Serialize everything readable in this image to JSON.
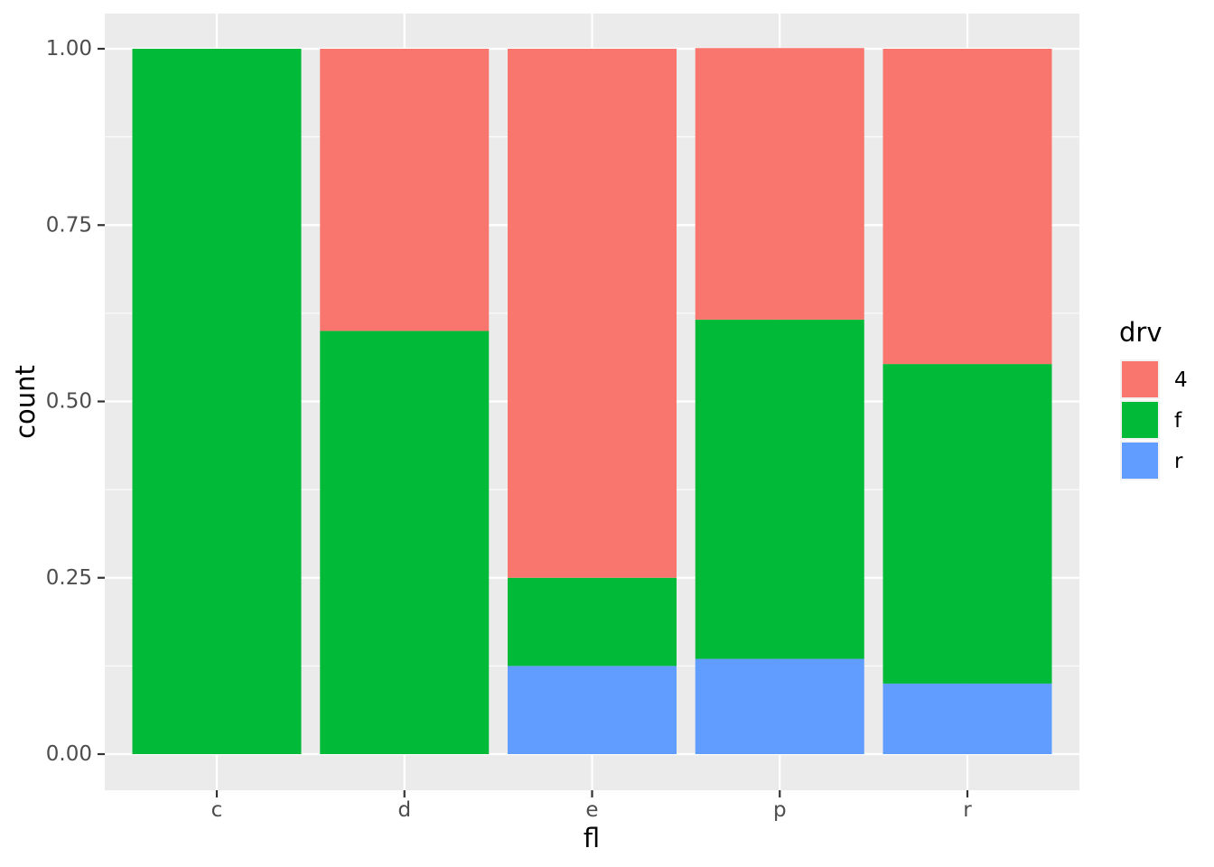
{
  "chart_data": {
    "type": "bar",
    "stacked": true,
    "position": "fill",
    "categories": [
      "c",
      "d",
      "e",
      "p",
      "r"
    ],
    "series": [
      {
        "name": "4",
        "color": "#F8766D",
        "values": [
          0.0,
          0.4,
          0.75,
          0.385,
          0.447
        ]
      },
      {
        "name": "f",
        "color": "#00BA38",
        "values": [
          1.0,
          0.6,
          0.125,
          0.481,
          0.453
        ]
      },
      {
        "name": "r",
        "color": "#619CFF",
        "values": [
          0.0,
          0.0,
          0.125,
          0.135,
          0.1
        ]
      }
    ],
    "xlabel": "fl",
    "ylabel": "count",
    "ylim": [
      0,
      1
    ],
    "yticks": [
      "0.00",
      "0.25",
      "0.50",
      "0.75",
      "1.00"
    ],
    "ytick_values": [
      0,
      0.25,
      0.5,
      0.75,
      1.0
    ],
    "legend": {
      "title": "drv",
      "placement": "right"
    },
    "grid": true,
    "panel_background": "#EBEBEB"
  }
}
